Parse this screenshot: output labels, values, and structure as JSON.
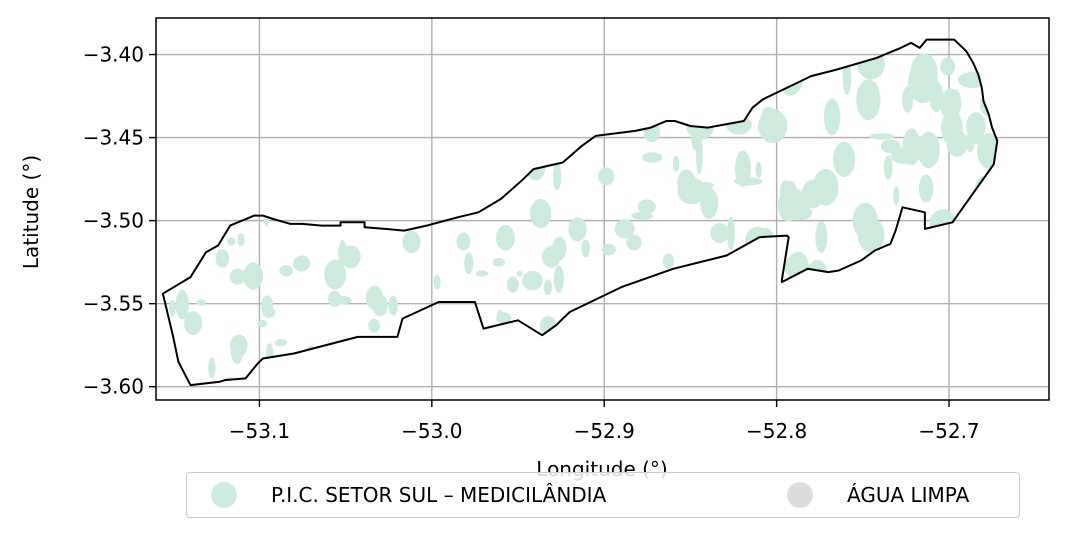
{
  "chart_data": {
    "type": "map",
    "xlabel": "Longitude (°)",
    "ylabel": "Latitude (°)",
    "xlim": [
      -53.16,
      -52.642
    ],
    "ylim": [
      -3.608,
      -3.378
    ],
    "x_ticks": [
      -53.1,
      -53.0,
      -52.9,
      -52.8,
      -52.7
    ],
    "x_tick_labels": [
      "−53.1",
      "−53.0",
      "−52.9",
      "−52.8",
      "−52.7"
    ],
    "y_ticks": [
      -3.4,
      -3.45,
      -3.5,
      -3.55,
      -3.6
    ],
    "y_tick_labels": [
      "−3.40",
      "−3.45",
      "−3.50",
      "−3.55",
      "−3.60"
    ],
    "grid": true,
    "legend_placement": "below",
    "legend": [
      {
        "label": "P.I.C. SETOR SUL – MEDICILÂNDIA",
        "color": "#ceeadc"
      },
      {
        "label": "ÁGUA LIMPA",
        "color": "#dcdcdc"
      }
    ],
    "boundary": [
      [
        -53.156,
        -3.544
      ],
      [
        -53.14,
        -3.534
      ],
      [
        -53.131,
        -3.519
      ],
      [
        -53.124,
        -3.515
      ],
      [
        -53.117,
        -3.503
      ],
      [
        -53.103,
        -3.497
      ],
      [
        -53.098,
        -3.497
      ],
      [
        -53.092,
        -3.499
      ],
      [
        -53.082,
        -3.502
      ],
      [
        -53.075,
        -3.502
      ],
      [
        -53.064,
        -3.503
      ],
      [
        -53.053,
        -3.503
      ],
      [
        -53.053,
        -3.501
      ],
      [
        -53.039,
        -3.501
      ],
      [
        -53.039,
        -3.504
      ],
      [
        -53.027,
        -3.505
      ],
      [
        -53.016,
        -3.506
      ],
      [
        -53.003,
        -3.503
      ],
      [
        -52.985,
        -3.498
      ],
      [
        -52.973,
        -3.495
      ],
      [
        -52.96,
        -3.487
      ],
      [
        -52.948,
        -3.476
      ],
      [
        -52.941,
        -3.469
      ],
      [
        -52.924,
        -3.465
      ],
      [
        -52.913,
        -3.455
      ],
      [
        -52.905,
        -3.449
      ],
      [
        -52.882,
        -3.446
      ],
      [
        -52.873,
        -3.444
      ],
      [
        -52.864,
        -3.44
      ],
      [
        -52.859,
        -3.44
      ],
      [
        -52.85,
        -3.443
      ],
      [
        -52.84,
        -3.444
      ],
      [
        -52.819,
        -3.44
      ],
      [
        -52.814,
        -3.432
      ],
      [
        -52.808,
        -3.427
      ],
      [
        -52.78,
        -3.413
      ],
      [
        -52.765,
        -3.409
      ],
      [
        -52.742,
        -3.402
      ],
      [
        -52.728,
        -3.396
      ],
      [
        -52.722,
        -3.393
      ],
      [
        -52.717,
        -3.396
      ],
      [
        -52.713,
        -3.391
      ],
      [
        -52.701,
        -3.391
      ],
      [
        -52.697,
        -3.391
      ],
      [
        -52.69,
        -3.398
      ],
      [
        -52.686,
        -3.405
      ],
      [
        -52.683,
        -3.412
      ],
      [
        -52.681,
        -3.42
      ],
      [
        -52.68,
        -3.428
      ],
      [
        -52.677,
        -3.436
      ],
      [
        -52.675,
        -3.444
      ],
      [
        -52.672,
        -3.452
      ],
      [
        -52.674,
        -3.466
      ],
      [
        -52.698,
        -3.501
      ],
      [
        -52.714,
        -3.505
      ],
      [
        -52.714,
        -3.495
      ],
      [
        -52.727,
        -3.492
      ],
      [
        -52.731,
        -3.506
      ],
      [
        -52.734,
        -3.514
      ],
      [
        -52.743,
        -3.518
      ],
      [
        -52.751,
        -3.524
      ],
      [
        -52.764,
        -3.53
      ],
      [
        -52.77,
        -3.531
      ],
      [
        -52.782,
        -3.529
      ],
      [
        -52.797,
        -3.537
      ],
      [
        -52.797,
        -3.536
      ],
      [
        -52.793,
        -3.51
      ],
      [
        -52.794,
        -3.509
      ],
      [
        -52.81,
        -3.51
      ],
      [
        -52.829,
        -3.521
      ],
      [
        -52.86,
        -3.529
      ],
      [
        -52.89,
        -3.54
      ],
      [
        -52.92,
        -3.555
      ],
      [
        -52.928,
        -3.563
      ],
      [
        -52.936,
        -3.569
      ],
      [
        -52.95,
        -3.56
      ],
      [
        -52.97,
        -3.565
      ],
      [
        -52.975,
        -3.549
      ],
      [
        -52.996,
        -3.549
      ],
      [
        -53.017,
        -3.559
      ],
      [
        -53.02,
        -3.57
      ],
      [
        -53.043,
        -3.57
      ],
      [
        -53.08,
        -3.58
      ],
      [
        -53.098,
        -3.583
      ],
      [
        -53.101,
        -3.586
      ],
      [
        -53.108,
        -3.595
      ],
      [
        -53.12,
        -3.596
      ],
      [
        -53.123,
        -3.597
      ],
      [
        -53.14,
        -3.599
      ],
      [
        -53.147,
        -3.585
      ],
      [
        -53.15,
        -3.57
      ]
    ]
  }
}
